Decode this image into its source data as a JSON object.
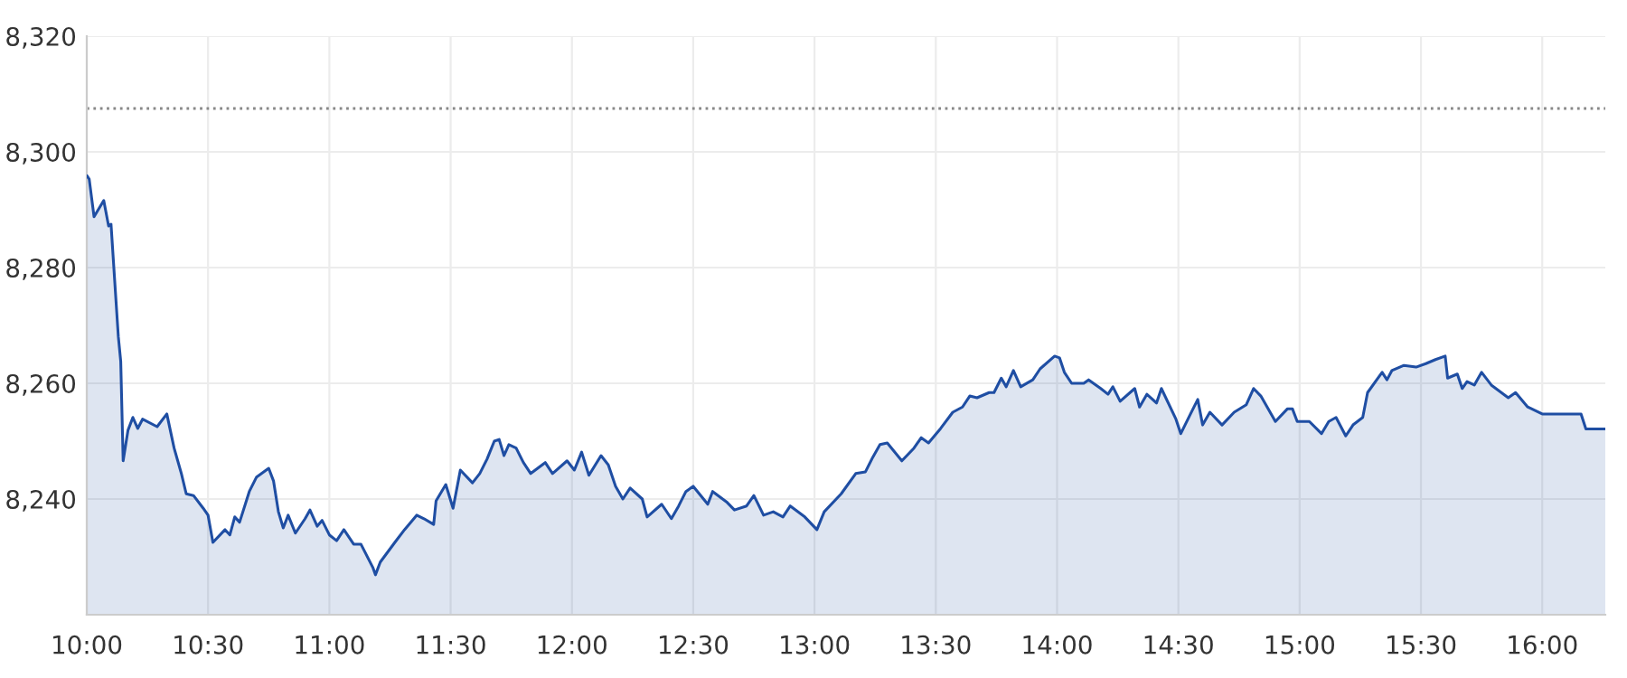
{
  "chart_data": {
    "type": "area",
    "x": [
      10.0,
      10.01,
      10.03,
      10.07,
      10.09,
      10.1,
      10.13,
      10.14,
      10.15,
      10.17,
      10.19,
      10.21,
      10.23,
      10.29,
      10.33,
      10.36,
      10.39,
      10.41,
      10.44,
      10.48,
      10.5,
      10.52,
      10.57,
      10.59,
      10.61,
      10.63,
      10.67,
      10.7,
      10.75,
      10.77,
      10.79,
      10.81,
      10.83,
      10.86,
      10.9,
      10.92,
      10.95,
      10.97,
      11.0,
      11.03,
      11.06,
      11.1,
      11.13,
      11.18,
      11.19,
      11.21,
      11.27,
      11.31,
      11.36,
      11.39,
      11.43,
      11.44,
      11.48,
      11.51,
      11.54,
      11.59,
      11.62,
      11.65,
      11.68,
      11.7,
      11.72,
      11.74,
      11.77,
      11.8,
      11.83,
      11.89,
      11.92,
      11.98,
      12.01,
      12.04,
      12.07,
      12.12,
      12.15,
      12.18,
      12.21,
      12.24,
      12.29,
      12.31,
      12.37,
      12.41,
      12.44,
      12.47,
      12.5,
      12.56,
      12.58,
      12.64,
      12.67,
      12.72,
      12.75,
      12.79,
      12.83,
      12.87,
      12.9,
      12.96,
      13.01,
      13.04,
      13.11,
      13.17,
      13.21,
      13.24,
      13.27,
      13.3,
      13.36,
      13.41,
      13.44,
      13.47,
      13.52,
      13.57,
      13.61,
      13.64,
      13.67,
      13.72,
      13.74,
      13.77,
      13.79,
      13.82,
      13.85,
      13.9,
      13.93,
      13.99,
      14.01,
      14.03,
      14.06,
      14.11,
      14.13,
      14.18,
      14.21,
      14.23,
      14.26,
      14.32,
      14.34,
      14.37,
      14.41,
      14.43,
      14.49,
      14.51,
      14.55,
      14.58,
      14.6,
      14.63,
      14.68,
      14.73,
      14.78,
      14.81,
      14.84,
      14.9,
      14.95,
      14.97,
      14.99,
      15.04,
      15.09,
      15.12,
      15.15,
      15.19,
      15.22,
      15.26,
      15.28,
      15.34,
      15.36,
      15.38,
      15.43,
      15.48,
      15.52,
      15.56,
      15.6,
      15.61,
      15.65,
      15.67,
      15.69,
      15.72,
      15.75,
      15.79,
      15.86,
      15.89,
      15.94,
      16.0,
      16.16,
      16.18,
      16.26
    ],
    "series": [
      {
        "color": "#1f4ea3",
        "values": [
          8295.9,
          8295.3,
          8288.8,
          8291.6,
          8287.2,
          8287.5,
          8268.1,
          8263.8,
          8246.6,
          8251.9,
          8254.1,
          8252.2,
          8253.8,
          8252.5,
          8254.7,
          8248.8,
          8244.4,
          8240.9,
          8240.6,
          8238.4,
          8237.2,
          8232.5,
          8234.7,
          8233.8,
          8236.9,
          8236.0,
          8241.3,
          8243.8,
          8245.3,
          8243.1,
          8237.8,
          8235.0,
          8237.2,
          8234.1,
          8236.6,
          8238.1,
          8235.3,
          8236.3,
          8233.8,
          8232.8,
          8234.7,
          8232.2,
          8232.2,
          8228.1,
          8226.9,
          8229.1,
          8232.5,
          8234.7,
          8237.2,
          8236.6,
          8235.6,
          8239.7,
          8242.5,
          8238.4,
          8245.0,
          8242.8,
          8244.4,
          8246.9,
          8250.0,
          8250.3,
          8247.5,
          8249.4,
          8248.8,
          8246.3,
          8244.4,
          8246.3,
          8244.4,
          8246.6,
          8245.0,
          8248.1,
          8244.1,
          8247.5,
          8245.9,
          8242.2,
          8240.0,
          8241.9,
          8240.0,
          8236.9,
          8239.1,
          8236.6,
          8238.8,
          8241.3,
          8242.2,
          8239.1,
          8241.3,
          8239.4,
          8238.1,
          8238.8,
          8240.6,
          8237.2,
          8237.8,
          8236.9,
          8238.8,
          8236.9,
          8234.7,
          8237.8,
          8240.9,
          8244.4,
          8244.7,
          8247.2,
          8249.4,
          8249.7,
          8246.6,
          8248.8,
          8250.6,
          8249.7,
          8252.2,
          8255.0,
          8255.9,
          8257.8,
          8257.5,
          8258.4,
          8258.4,
          8260.9,
          8259.4,
          8262.2,
          8259.4,
          8260.6,
          8262.5,
          8264.7,
          8264.4,
          8261.9,
          8260.0,
          8260.0,
          8260.6,
          8259.1,
          8258.1,
          8259.4,
          8256.9,
          8259.1,
          8255.9,
          8258.1,
          8256.6,
          8259.1,
          8253.8,
          8251.3,
          8254.7,
          8257.2,
          8252.8,
          8255.0,
          8252.8,
          8255.0,
          8256.3,
          8259.1,
          8257.8,
          8253.4,
          8255.6,
          8255.6,
          8253.4,
          8253.4,
          8251.3,
          8253.4,
          8254.1,
          8250.9,
          8252.8,
          8254.1,
          8258.4,
          8261.9,
          8260.6,
          8262.2,
          8263.1,
          8262.8,
          8263.4,
          8264.1,
          8264.7,
          8260.9,
          8261.6,
          8259.1,
          8260.3,
          8259.7,
          8261.9,
          8259.7,
          8257.5,
          8258.4,
          8255.9,
          8254.7,
          8254.7,
          8252.1,
          8252.1
        ]
      }
    ],
    "xlim": [
      10,
      16.26
    ],
    "xticks": [
      {
        "value": 10,
        "label": "10:00"
      },
      {
        "value": 10.5,
        "label": "10:30"
      },
      {
        "value": 11,
        "label": "11:00"
      },
      {
        "value": 11.5,
        "label": "11:30"
      },
      {
        "value": 12,
        "label": "12:00"
      },
      {
        "value": 12.5,
        "label": "12:30"
      },
      {
        "value": 13,
        "label": "13:00"
      },
      {
        "value": 13.5,
        "label": "13:30"
      },
      {
        "value": 14,
        "label": "14:00"
      },
      {
        "value": 14.5,
        "label": "14:30"
      },
      {
        "value": 15,
        "label": "15:00"
      },
      {
        "value": 15.5,
        "label": "15:30"
      },
      {
        "value": 16,
        "label": "16:00"
      }
    ],
    "ylim": [
      8220,
      8320
    ],
    "yticks": [
      {
        "value": 8240,
        "label": "8,240"
      },
      {
        "value": 8260,
        "label": "8,260"
      },
      {
        "value": 8280,
        "label": "8,280"
      },
      {
        "value": 8300,
        "label": "8,300"
      },
      {
        "value": 8320,
        "label": "8,320"
      }
    ],
    "ref_lines": [
      {
        "axis": "y",
        "value": 8307.5,
        "label": null,
        "color": "#888888",
        "line_style": "dotted"
      }
    ],
    "grid": true
  }
}
